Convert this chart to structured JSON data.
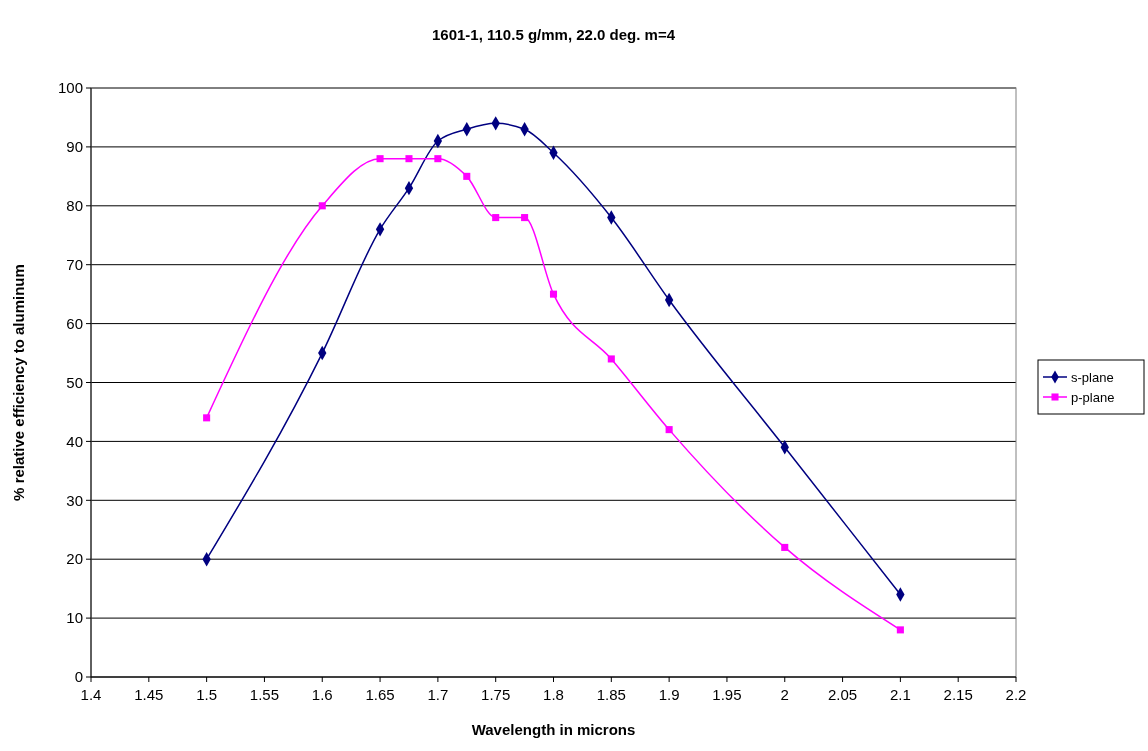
{
  "chart_data": {
    "type": "line",
    "title": "1601-1, 110.5 g/mm, 22.0 deg. m=4",
    "xlabel": "Wavelength in microns",
    "ylabel": "% relative efficiency to aluminum",
    "x": [
      1.5,
      1.6,
      1.65,
      1.675,
      1.7,
      1.725,
      1.75,
      1.775,
      1.8,
      1.85,
      1.9,
      2.0,
      2.1
    ],
    "series": [
      {
        "name": "s-plane",
        "color": "#000080",
        "marker": "diamond",
        "values": [
          20,
          55,
          76,
          83,
          91,
          93,
          94,
          93,
          89,
          78,
          64,
          39,
          14
        ]
      },
      {
        "name": "p-plane",
        "color": "#ff00ff",
        "marker": "square",
        "values": [
          44,
          80,
          88,
          88,
          88,
          85,
          78,
          78,
          65,
          54,
          42,
          22,
          8
        ]
      }
    ],
    "xlim": [
      1.4,
      2.2
    ],
    "xticks": [
      1.4,
      1.45,
      1.5,
      1.55,
      1.6,
      1.65,
      1.7,
      1.75,
      1.8,
      1.85,
      1.9,
      1.95,
      2,
      2.05,
      2.1,
      2.15,
      2.2
    ],
    "ylim": [
      0,
      100
    ],
    "yticks": [
      0,
      10,
      20,
      30,
      40,
      50,
      60,
      70,
      80,
      90,
      100
    ],
    "grid": "y",
    "legend": "right",
    "line_style": "solid"
  }
}
